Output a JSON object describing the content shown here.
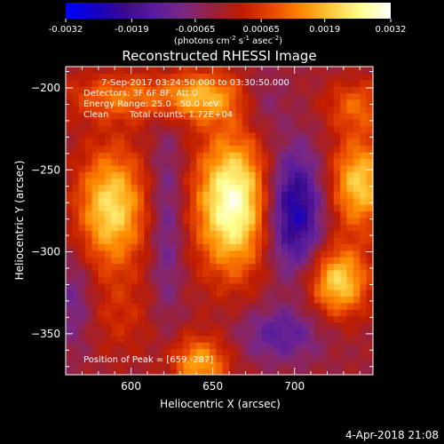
{
  "chart_data": {
    "type": "heatmap",
    "title": "Reconstructed RHESSI Image",
    "xlabel": "Heliocentric X (arcsec)",
    "ylabel": "Heliocentric Y (arcsec)",
    "xlim": [
      560,
      748
    ],
    "ylim": [
      -375,
      -187
    ],
    "xticks": [
      600,
      650,
      700
    ],
    "yticks": [
      -200,
      -250,
      -300,
      -350
    ],
    "colorbar": {
      "range": [
        -0.0032,
        0.0032
      ],
      "ticks": [
        "-0.0032",
        "-0.0019",
        "-0.00065",
        "0.00065",
        "0.0019",
        "0.0032"
      ],
      "unit_parts": [
        "(photons cm",
        "-2",
        " s",
        "-1",
        " asec",
        "-2",
        ")"
      ],
      "colormap": [
        "#0000ff",
        "#1500c4",
        "#3a0a8c",
        "#5a1c9c",
        "#7a2884",
        "#98203a",
        "#bf1d00",
        "#e84800",
        "#ff8a00",
        "#ffcb40",
        "#ffff90",
        "#ffffff"
      ]
    },
    "annotations": [
      "7-Sep-2017 03:24:50.000 to 03:30:50.000",
      "Detectors: 3F 6F 8F, Att 0",
      "Energy Range: 25.0 - 50.0 keV",
      "Clean",
      "Total counts: 1.72E+04"
    ],
    "peak_label": "Position of Peak = [659,-287]",
    "peak": [
      659,
      -287
    ],
    "sources": [
      {
        "x": 662,
        "y": -270,
        "sx": 16,
        "sy": 30,
        "amp": 0.0032
      },
      {
        "x": 588,
        "y": -273,
        "sx": 15,
        "sy": 26,
        "amp": 0.0025
      },
      {
        "x": 740,
        "y": -258,
        "sx": 13,
        "sy": 20,
        "amp": 0.0023
      },
      {
        "x": 727,
        "y": -318,
        "sx": 13,
        "sy": 15,
        "amp": 0.0024
      },
      {
        "x": 642,
        "y": -205,
        "sx": 20,
        "sy": 11,
        "amp": 0.0019
      },
      {
        "x": 590,
        "y": -205,
        "sx": 22,
        "sy": 10,
        "amp": 0.0013
      },
      {
        "x": 738,
        "y": -210,
        "sx": 14,
        "sy": 11,
        "amp": 0.0012
      },
      {
        "x": 642,
        "y": -368,
        "sx": 13,
        "sy": 12,
        "amp": 0.0019
      },
      {
        "x": 593,
        "y": -340,
        "sx": 16,
        "sy": 18,
        "amp": 0.0006
      },
      {
        "x": 622,
        "y": -282,
        "sx": 7,
        "sy": 45,
        "amp": -0.001
      },
      {
        "x": 700,
        "y": -275,
        "sx": 12,
        "sy": 26,
        "amp": -0.0024
      },
      {
        "x": 691,
        "y": -350,
        "sx": 18,
        "sy": 12,
        "amp": -0.0012
      },
      {
        "x": 565,
        "y": -330,
        "sx": 9,
        "sy": 22,
        "amp": -0.0009
      },
      {
        "x": 680,
        "y": -208,
        "sx": 10,
        "sy": 14,
        "amp": -0.0007
      }
    ]
  },
  "footer": {
    "timestamp": "4-Apr-2018 21:08"
  }
}
